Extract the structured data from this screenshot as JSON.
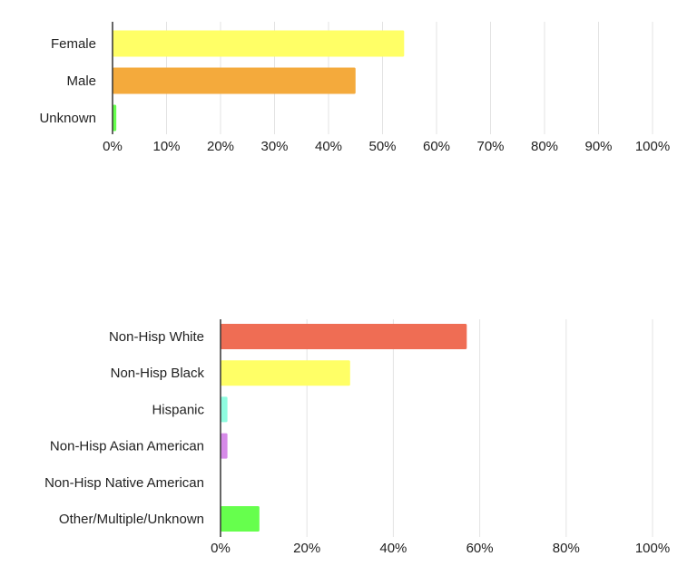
{
  "chart_data": [
    {
      "type": "bar",
      "orientation": "horizontal",
      "categories": [
        "Female",
        "Male",
        "Unknown"
      ],
      "values": [
        54,
        45,
        0.7
      ],
      "colors": [
        "#ffff66",
        "#f4aa3c",
        "#66ff4d"
      ],
      "xlim": [
        0,
        100
      ],
      "ticks": [
        0,
        10,
        20,
        30,
        40,
        50,
        60,
        70,
        80,
        90,
        100
      ],
      "tick_labels": [
        "0%",
        "10%",
        "20%",
        "30%",
        "40%",
        "50%",
        "60%",
        "70%",
        "80%",
        "90%",
        "100%"
      ],
      "grid": true,
      "legend": "none"
    },
    {
      "type": "bar",
      "orientation": "horizontal",
      "categories": [
        "Non-Hisp White",
        "Non-Hisp Black",
        "Hispanic",
        "Non-Hisp Asian American",
        "Non-Hisp Native American",
        "Other/Multiple/Unknown"
      ],
      "values": [
        57,
        30,
        1.6,
        1.6,
        0,
        9
      ],
      "colors": [
        "#ef6d54",
        "#ffff66",
        "#8ffce0",
        "#d68ae8",
        "#9bd2f0",
        "#66ff4d"
      ],
      "xlim": [
        0,
        100
      ],
      "ticks": [
        0,
        20,
        40,
        60,
        80,
        100
      ],
      "tick_labels": [
        "0%",
        "20%",
        "40%",
        "60%",
        "80%",
        "100%"
      ],
      "grid": true,
      "legend": "none"
    }
  ]
}
